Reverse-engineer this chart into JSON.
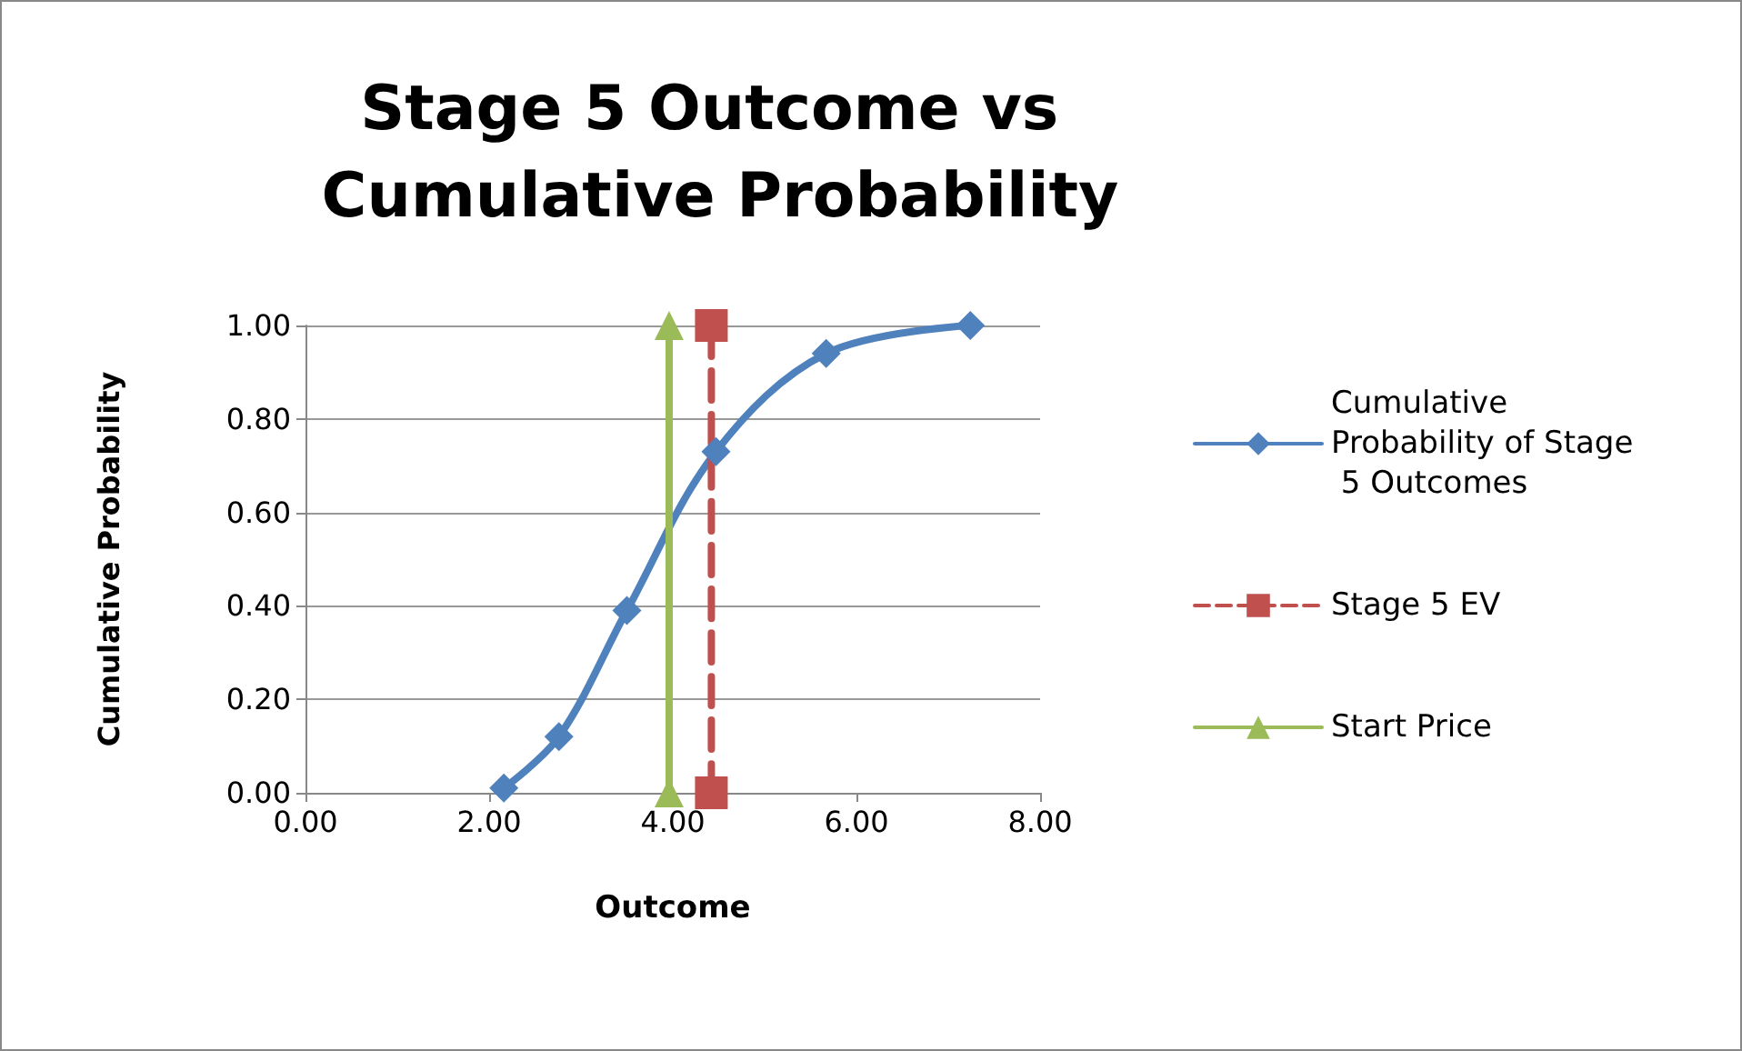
{
  "chart_data": {
    "type": "line",
    "title": "Stage 5 Outcome vs Cumulative Probability",
    "xlabel": "Outcome",
    "ylabel": "Cumulative Probability",
    "xlim": [
      0,
      8
    ],
    "xticks": [
      {
        "value": 0,
        "label": "0.00"
      },
      {
        "value": 2,
        "label": "2.00"
      },
      {
        "value": 4,
        "label": "4.00"
      },
      {
        "value": 6,
        "label": "6.00"
      },
      {
        "value": 8,
        "label": "8.00"
      }
    ],
    "ylim": [
      0,
      1
    ],
    "yticks": [
      {
        "value": 0,
        "label": "0.00"
      },
      {
        "value": 0.2,
        "label": "0.20"
      },
      {
        "value": 0.4,
        "label": "0.40"
      },
      {
        "value": 0.6,
        "label": "0.60"
      },
      {
        "value": 0.8,
        "label": "0.80"
      },
      {
        "value": 1,
        "label": "1.00"
      }
    ],
    "grid": "y",
    "legend": "right",
    "series": [
      {
        "name": "Cumulative Probability of Stage 5 Outcomes",
        "color": "#4f81bd",
        "x": [
          2.16,
          2.76,
          3.5,
          4.47,
          5.67,
          7.24
        ],
        "values": [
          0.01,
          0.12,
          0.39,
          0.73,
          0.94,
          1.0
        ],
        "marker": "diamond",
        "line_style": "solid"
      },
      {
        "name": "Stage 5 EV",
        "color": "#c0504d",
        "x": [
          4.42,
          4.42
        ],
        "values": [
          0,
          1
        ],
        "marker": "square",
        "line_style": "dashed"
      },
      {
        "name": "Start Price",
        "color": "#9bbb59",
        "x": [
          3.96,
          3.96
        ],
        "values": [
          0,
          1
        ],
        "marker": "triangle",
        "line_style": "solid"
      }
    ]
  }
}
